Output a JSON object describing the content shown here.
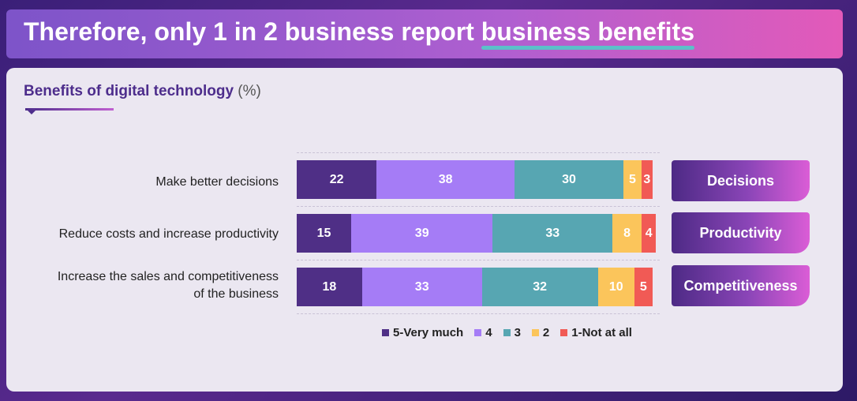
{
  "header": {
    "title_prefix": "Therefore, only 1 in 2 business report ",
    "title_highlight": "business benefits"
  },
  "card": {
    "title": "Benefits of digital technology",
    "unit": "(%)"
  },
  "colors": {
    "5-Very much": "#4f2f86",
    "4": "#a57cf6",
    "3": "#57a6b2",
    "2": "#fbc55b",
    "1-Not at all": "#f15a55"
  },
  "chart_data": {
    "type": "bar",
    "orientation": "horizontal",
    "stacked": true,
    "title": "Benefits of digital technology (%)",
    "categories": [
      "Make better decisions",
      "Reduce costs and increase productivity",
      "Increase the sales and competitiveness of the business"
    ],
    "series": [
      {
        "name": "5-Very much",
        "values": [
          22,
          15,
          18
        ]
      },
      {
        "name": "4",
        "values": [
          38,
          39,
          33
        ]
      },
      {
        "name": "3",
        "values": [
          30,
          33,
          32
        ]
      },
      {
        "name": "2",
        "values": [
          5,
          8,
          10
        ]
      },
      {
        "name": "1-Not at all",
        "values": [
          3,
          4,
          5
        ]
      }
    ],
    "xlim": [
      0,
      100
    ],
    "legend_position": "bottom",
    "grid": false
  },
  "rows": [
    {
      "label_lines": [
        "Make better decisions"
      ],
      "tag": "Decisions"
    },
    {
      "label_lines": [
        "Reduce costs and increase productivity"
      ],
      "tag": "Productivity"
    },
    {
      "label_lines": [
        "Increase the sales and competitiveness",
        "of the business"
      ],
      "tag": "Competitiveness"
    }
  ],
  "legend": [
    "5-Very much",
    "4",
    "3",
    "2",
    "1-Not at all"
  ]
}
